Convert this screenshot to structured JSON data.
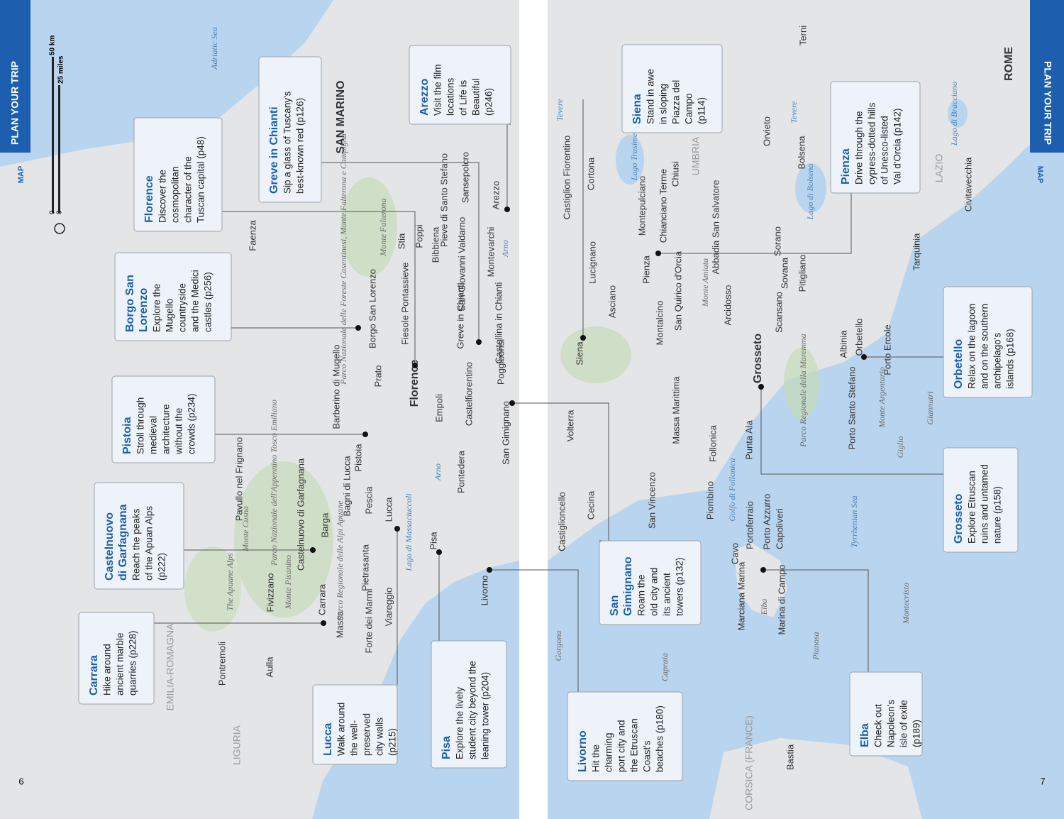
{
  "left_page": {
    "header": "PLAN YOUR TRIP",
    "section": "MAP",
    "page_number": "6",
    "scale": {
      "zero_km": "0",
      "zero_miles": "0",
      "km": "50 km",
      "miles": "25 miles"
    }
  },
  "right_page": {
    "header": "PLAN YOUR TRIP",
    "section": "MAP",
    "page_number": "7"
  },
  "callouts": [
    {
      "title": [
        "Florence"
      ],
      "lines": [
        "Discover the",
        "cosmopolitan",
        "character of the",
        "Tuscan capital (p48)"
      ]
    },
    {
      "title": [
        "Greve in Chianti"
      ],
      "lines": [
        "Sip a glass of Tuscany's",
        "best-known red (p126)"
      ]
    },
    {
      "title": [
        "Arezzo"
      ],
      "lines": [
        "Visit the film",
        "locations",
        "of Life is",
        "Beautiful",
        "(p246)"
      ]
    },
    {
      "title": [
        "Borgo San",
        "Lorenzo"
      ],
      "lines": [
        "Explore the",
        "Mugello",
        "countryside",
        "and the Medici",
        "castles (p256)"
      ]
    },
    {
      "title": [
        "Pistoia"
      ],
      "lines": [
        "Stroll through",
        "medieval",
        "architecture",
        "without the",
        "crowds (p234)"
      ]
    },
    {
      "title": [
        "Castelnuovo",
        "di Garfagnana"
      ],
      "lines": [
        "Reach the peaks",
        "of the Apuan Alps",
        "(p222)"
      ]
    },
    {
      "title": [
        "Carrara"
      ],
      "lines": [
        "Hike around",
        "ancient marble",
        "quarries (p228)"
      ]
    },
    {
      "title": [
        "Lucca"
      ],
      "lines": [
        "Walk around",
        "the well-",
        "preserved",
        "city walls",
        "(p215)"
      ]
    },
    {
      "title": [
        "Pisa"
      ],
      "lines": [
        "Explore the lively",
        "student city beyond the",
        "leaning tower (p204)"
      ]
    },
    {
      "title": [
        "Siena"
      ],
      "lines": [
        "Stand in awe",
        "in sloping",
        "Piazza del",
        "Campo",
        "(p114)"
      ]
    },
    {
      "title": [
        "Pienza"
      ],
      "lines": [
        "Drive through the",
        "cypress-dotted hills",
        "of Unesco-listed",
        "Val d'Orcia (p142)"
      ]
    },
    {
      "title": [
        "Orbetello"
      ],
      "lines": [
        "Relax on the lagoon",
        "and on the southern",
        "archipelago's",
        "islands (p168)"
      ]
    },
    {
      "title": [
        "Grosseto"
      ],
      "lines": [
        "Explore Etruscan",
        "ruins and untamed",
        "nature (p158)"
      ]
    },
    {
      "title": [
        "San",
        "Gimignano"
      ],
      "lines": [
        "Roam the",
        "old city and",
        "its ancient",
        "towers (p132)"
      ]
    },
    {
      "title": [
        "Elba"
      ],
      "lines": [
        "Check out",
        "Napoleon's",
        "isle of exile",
        "(p189)"
      ]
    },
    {
      "title": [
        "Livorno"
      ],
      "lines": [
        "Hit the",
        "charming",
        "port city and",
        "the Etruscan",
        "Coast's",
        "beaches (p180)"
      ]
    }
  ],
  "places": [
    "Faenza",
    "SAN MARINO",
    "Adriatic Sea",
    "Pieve di Santo Stefano",
    "Sansepolcro",
    "Arezzo",
    "Stia",
    "Poppi",
    "Bibbiena",
    "San Giovanni Valdarno",
    "Montevarchi",
    "Arno",
    "Pontassieve",
    "Borgo San Lorenzo",
    "Fiesole",
    "Greve in Chianti",
    "Castellina in Chianti",
    "Florence",
    "Poggibonsi",
    "Prato",
    "Barberino di Mugello",
    "Empoli",
    "Castelfiorentino",
    "San Gimignano",
    "Pistoia",
    "Pontedera",
    "Arno",
    "Pavullo nel Frignano",
    "Bagni di Lucca",
    "Pescia",
    "Lucca",
    "Pisa",
    "Lago di Massaciuccoli",
    "Livorno",
    "Castelnuovo di Garfagnana",
    "Barga",
    "Pietrasanta",
    "Viareggio",
    "Forte dei Marmi",
    "Massa",
    "Carrara",
    "Fivizzano",
    "Aulla",
    "Pontremoli",
    "EMILIA-ROMAGNA",
    "LIGURIA",
    "Parco Nazionale delle Foreste Casentinesi, Monte Falterona e Campigna",
    "Monte Falterona",
    "Parco Nazionale dell'Appennino Tosco Emiliano",
    "Monte Cusna",
    "Monte Pisanino",
    "Parco Regionale delle Alpi Apuane",
    "The Apuane Alps",
    "Terni",
    "ROME",
    "Tevere",
    "Tevere",
    "Castiglion Fiorentino",
    "Cortona",
    "Lago Trasimeno",
    "UMBRIA",
    "Chiusi",
    "Montepulciano",
    "Chianciano Terme",
    "Orvieto",
    "Bolsena",
    "Lago di Bolsena",
    "Lago di Bracciano",
    "LAZIO",
    "Civitavecchia",
    "Abbadia San Salvatore",
    "Sorano",
    "Tarquinia",
    "Sovana",
    "Pitigliano",
    "Lucignano",
    "Pienza",
    "San Quirico d'Orcia",
    "Monte Amiata",
    "Arcidosso",
    "Asciano",
    "Montalcino",
    "Scansano",
    "Albinia",
    "Orbetello",
    "Porto Ercole",
    "Siena",
    "Grosseto",
    "Parco Regionale della Maremma",
    "Porto Santo Stefano",
    "Monte Argentario",
    "Giannutri",
    "Giglio",
    "Volterra",
    "Massa Marittima",
    "Follonica",
    "Punta Ala",
    "Golfo di Follonica",
    "Piombino",
    "San Vincenzo",
    "Cecina",
    "Castiglioncello",
    "Portoferraio",
    "Porto Azzurro",
    "Capoliveri",
    "Cavo",
    "Tyrrhenian Sea",
    "Marciana Marina",
    "Elba",
    "Marina di Campo",
    "Montecristo",
    "Gorgona",
    "Pianosa",
    "Capraia",
    "CORSICA (FRANCE)",
    "Bastia"
  ]
}
